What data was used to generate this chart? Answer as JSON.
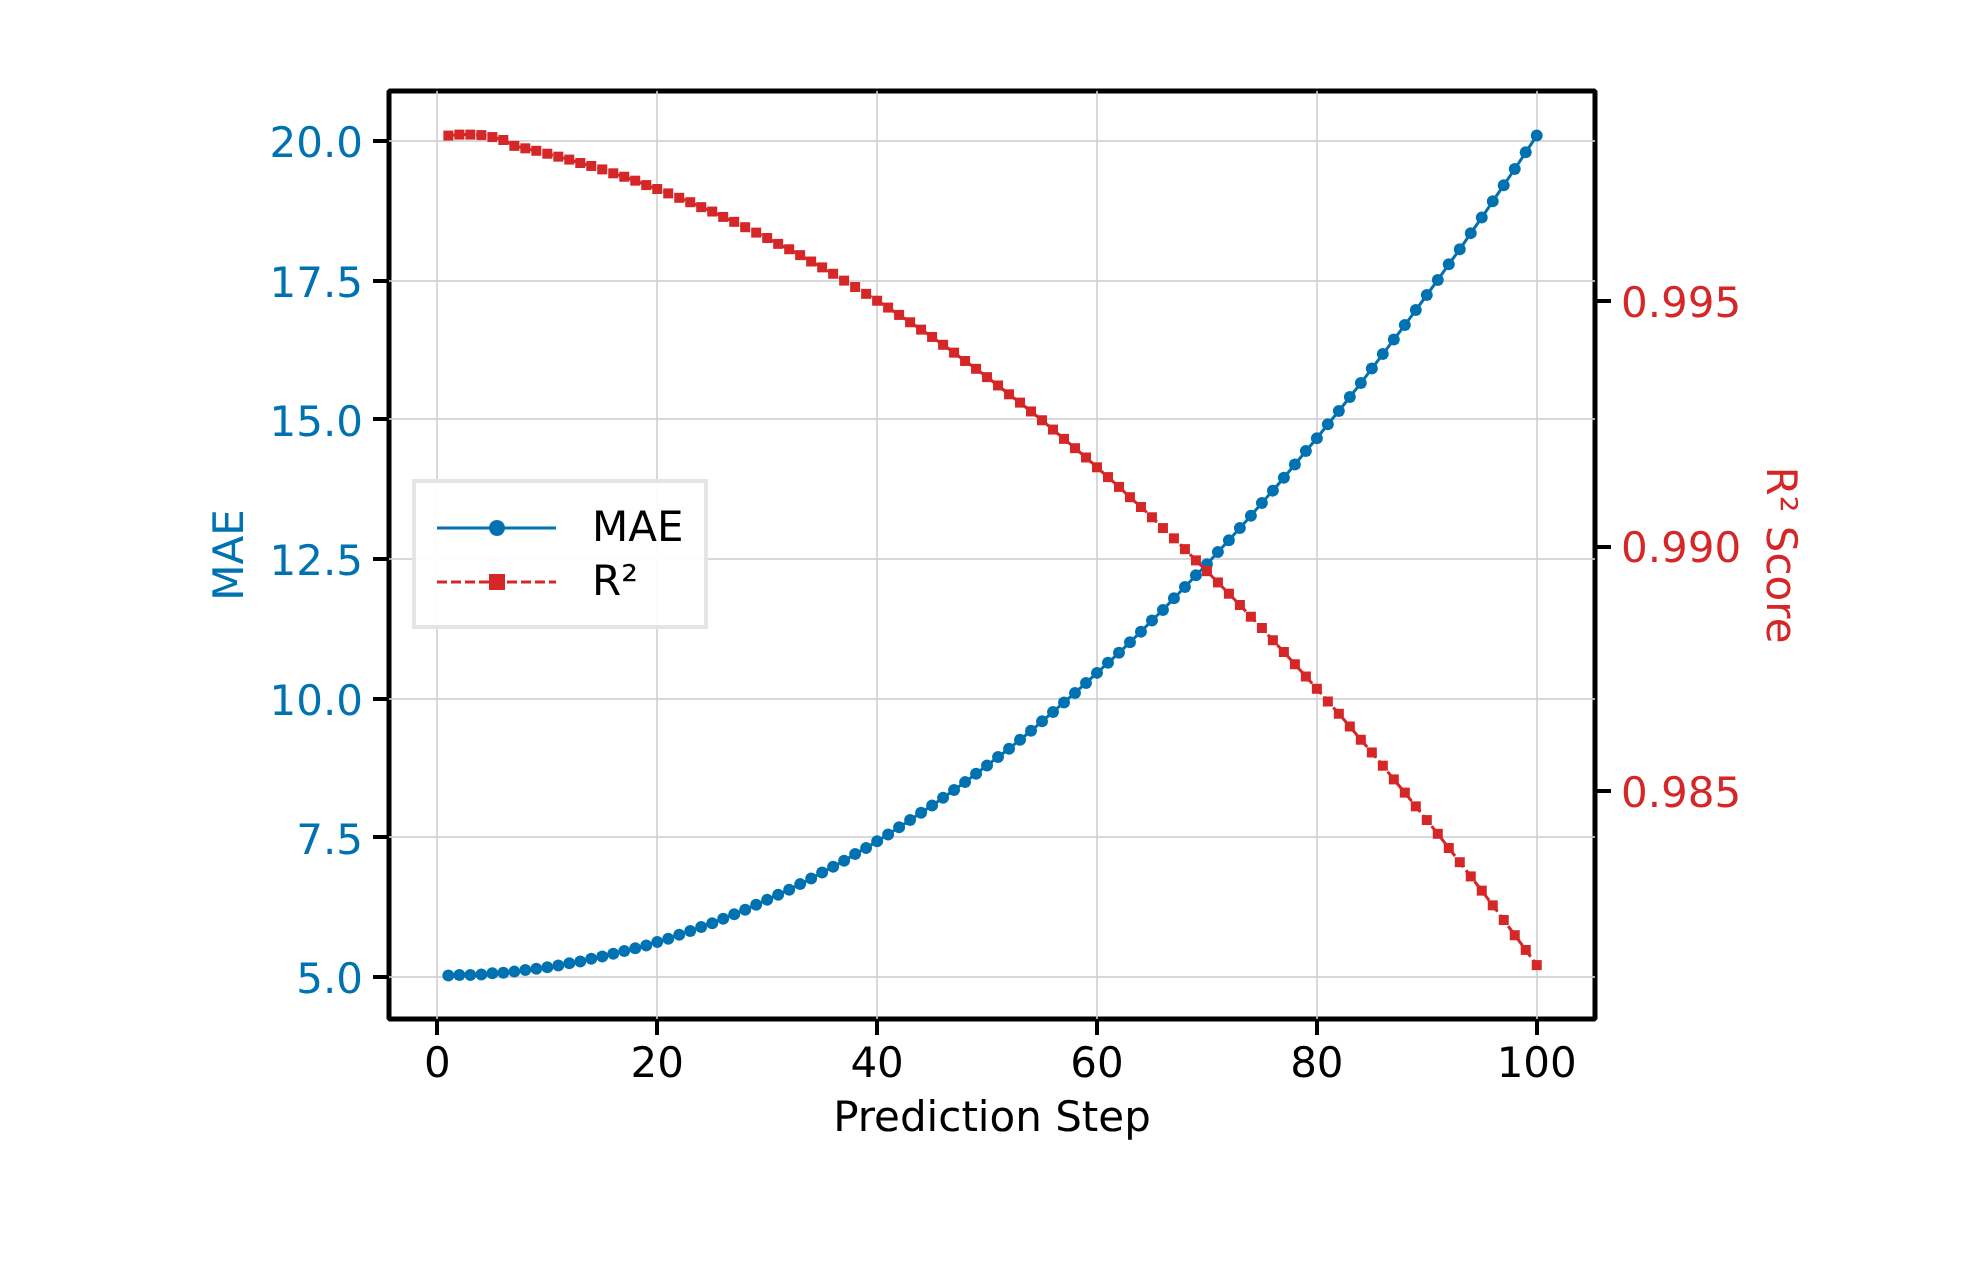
{
  "chart_data": {
    "type": "line",
    "xlabel": "Prediction Step",
    "ylabel": "MAE",
    "y2label": "R² Score",
    "x": [
      1,
      2,
      3,
      4,
      5,
      6,
      7,
      8,
      9,
      10,
      11,
      12,
      13,
      14,
      15,
      16,
      17,
      18,
      19,
      20,
      21,
      22,
      23,
      24,
      25,
      26,
      27,
      28,
      29,
      30,
      31,
      32,
      33,
      34,
      35,
      36,
      37,
      38,
      39,
      40,
      41,
      42,
      43,
      44,
      45,
      46,
      47,
      48,
      49,
      50,
      51,
      52,
      53,
      54,
      55,
      56,
      57,
      58,
      59,
      60,
      61,
      62,
      63,
      64,
      65,
      66,
      67,
      68,
      69,
      70,
      71,
      72,
      73,
      74,
      75,
      76,
      77,
      78,
      79,
      80,
      81,
      82,
      83,
      84,
      85,
      86,
      87,
      88,
      89,
      90,
      91,
      92,
      93,
      94,
      95,
      96,
      97,
      98,
      99,
      100
    ],
    "series": [
      {
        "name": "MAE",
        "color": "#0072b2",
        "marker": "circle",
        "line_style": "solid",
        "values": [
          5.03,
          5.04,
          5.04,
          5.05,
          5.07,
          5.08,
          5.1,
          5.13,
          5.15,
          5.18,
          5.21,
          5.25,
          5.28,
          5.33,
          5.37,
          5.42,
          5.47,
          5.52,
          5.57,
          5.63,
          5.69,
          5.76,
          5.83,
          5.9,
          5.97,
          6.05,
          6.13,
          6.21,
          6.3,
          6.39,
          6.48,
          6.57,
          6.67,
          6.77,
          6.88,
          6.98,
          7.09,
          7.21,
          7.32,
          7.44,
          7.56,
          7.69,
          7.82,
          7.95,
          8.08,
          8.22,
          8.36,
          8.5,
          8.65,
          8.8,
          8.95,
          9.1,
          9.26,
          9.42,
          9.59,
          9.76,
          9.93,
          10.1,
          10.28,
          10.46,
          10.64,
          10.82,
          11.01,
          11.2,
          11.4,
          11.59,
          11.8,
          12.0,
          12.21,
          12.41,
          12.63,
          12.84,
          13.06,
          13.28,
          13.51,
          13.73,
          13.96,
          14.2,
          14.44,
          14.67,
          14.92,
          15.16,
          15.41,
          15.66,
          15.92,
          16.18,
          16.44,
          16.7,
          16.97,
          17.24,
          17.51,
          17.79,
          18.06,
          18.35,
          18.63,
          18.92,
          19.21,
          19.5,
          19.8,
          20.1
        ]
      },
      {
        "name": "R²",
        "color": "#d62728",
        "marker": "square",
        "line_style": "dashed",
        "axis": "y2",
        "values": [
          0.99838,
          0.9984,
          0.9984,
          0.99839,
          0.99835,
          0.99829,
          0.99817,
          0.99812,
          0.99807,
          0.99801,
          0.99795,
          0.99789,
          0.99782,
          0.99776,
          0.99769,
          0.99761,
          0.99754,
          0.99746,
          0.99737,
          0.99729,
          0.9972,
          0.99711,
          0.99702,
          0.99692,
          0.99683,
          0.99672,
          0.99662,
          0.99651,
          0.9964,
          0.99629,
          0.99617,
          0.99606,
          0.99594,
          0.99581,
          0.99569,
          0.99556,
          0.99542,
          0.99529,
          0.99515,
          0.99501,
          0.99487,
          0.99472,
          0.99457,
          0.99442,
          0.99427,
          0.99411,
          0.99395,
          0.99378,
          0.99362,
          0.99345,
          0.99328,
          0.9931,
          0.99293,
          0.99275,
          0.99257,
          0.99238,
          0.99219,
          0.992,
          0.99181,
          0.99161,
          0.99141,
          0.99121,
          0.991,
          0.9908,
          0.99059,
          0.99037,
          0.99016,
          0.98994,
          0.98971,
          0.98949,
          0.98926,
          0.98903,
          0.9888,
          0.98856,
          0.98833,
          0.98808,
          0.98784,
          0.98759,
          0.98734,
          0.98709,
          0.98683,
          0.98658,
          0.98632,
          0.98605,
          0.98579,
          0.98552,
          0.98524,
          0.98497,
          0.98469,
          0.98441,
          0.98413,
          0.98384,
          0.98355,
          0.98326,
          0.98297,
          0.98267,
          0.98237,
          0.98206,
          0.98176,
          0.98145
        ]
      }
    ],
    "xlim": [
      -4.4,
      105.3
    ],
    "xticks": [
      0,
      20,
      40,
      60,
      80,
      100
    ],
    "ylim": [
      4.25,
      20.9
    ],
    "yticks": [
      {
        "value": 5,
        "label": "5.0"
      },
      {
        "value": 7.5,
        "label": "7.5"
      },
      {
        "value": 10,
        "label": "10.0"
      },
      {
        "value": 12.5,
        "label": "12.5"
      },
      {
        "value": 15,
        "label": "15.0"
      },
      {
        "value": 17.5,
        "label": "17.5"
      },
      {
        "value": 20,
        "label": "20.0"
      }
    ],
    "y2lim": [
      0.98035,
      0.99929
    ],
    "y2ticks": [
      0.985,
      {
        "value": 0.99,
        "label": "0.990"
      },
      0.995
    ],
    "grid": true,
    "legend": "left"
  }
}
